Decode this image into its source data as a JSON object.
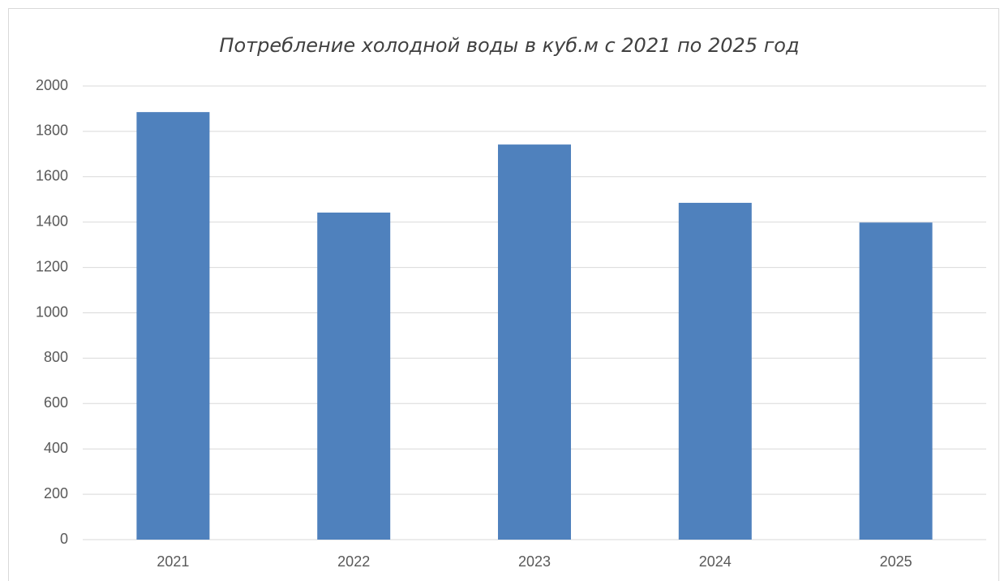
{
  "chart_data": {
    "type": "bar",
    "title": "Потребление холодной воды в куб.м с 2021 по 2025 год",
    "categories": [
      "2021",
      "2022",
      "2023",
      "2024",
      "2025"
    ],
    "values": [
      1885,
      1442,
      1742,
      1485,
      1398
    ],
    "color": "#4f81bd",
    "ylim": [
      0,
      2000
    ],
    "yticks": [
      0,
      200,
      400,
      600,
      800,
      1000,
      1200,
      1400,
      1600,
      1800,
      2000
    ],
    "grid": true
  }
}
